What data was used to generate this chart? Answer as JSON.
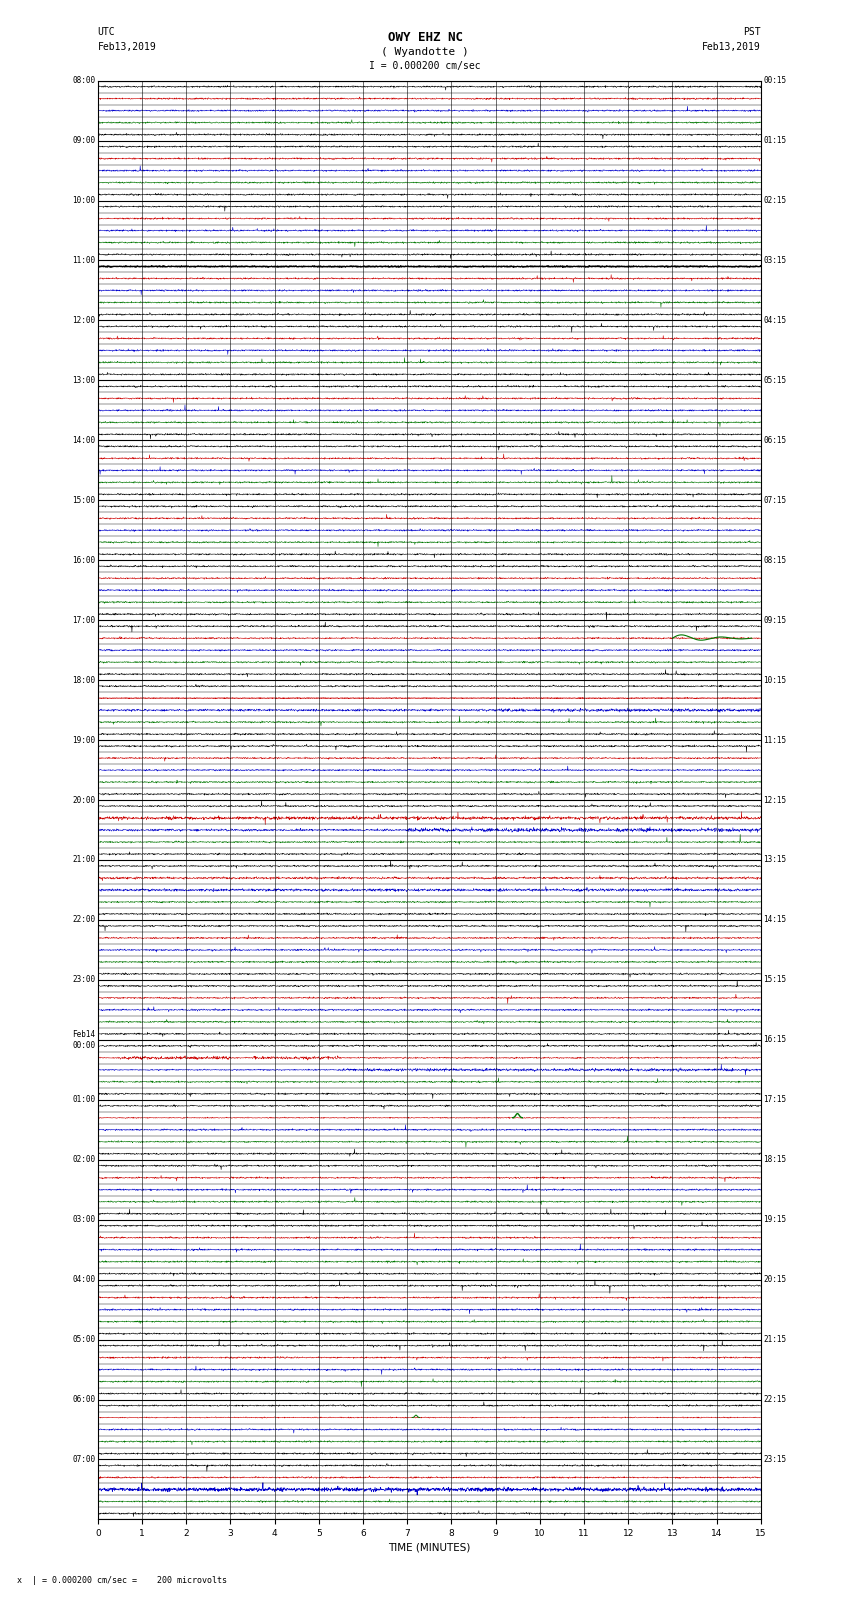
{
  "title_line1": "OWY EHZ NC",
  "title_line2": "( Wyandotte )",
  "scale_text": "I = 0.000200 cm/sec",
  "utc_label": "UTC",
  "utc_date": "Feb13,2019",
  "pst_label": "PST",
  "pst_date": "Feb13,2019",
  "footer_text": "x  | = 0.000200 cm/sec =    200 microvolts",
  "xlabel": "TIME (MINUTES)",
  "left_times": [
    "08:00",
    "09:00",
    "10:00",
    "11:00",
    "12:00",
    "13:00",
    "14:00",
    "15:00",
    "16:00",
    "17:00",
    "18:00",
    "19:00",
    "20:00",
    "21:00",
    "22:00",
    "23:00",
    "Feb14\n00:00",
    "01:00",
    "02:00",
    "03:00",
    "04:00",
    "05:00",
    "06:00",
    "07:00"
  ],
  "right_times": [
    "00:15",
    "01:15",
    "02:15",
    "03:15",
    "04:15",
    "05:15",
    "06:15",
    "07:15",
    "08:15",
    "09:15",
    "10:15",
    "11:15",
    "12:15",
    "13:15",
    "14:15",
    "15:15",
    "16:15",
    "17:15",
    "18:15",
    "19:15",
    "20:15",
    "21:15",
    "22:15",
    "23:15"
  ],
  "n_rows": 24,
  "sub_rows": 5,
  "minutes_per_row": 15,
  "x_ticks": [
    0,
    1,
    2,
    3,
    4,
    5,
    6,
    7,
    8,
    9,
    10,
    11,
    12,
    13,
    14,
    15
  ],
  "bg_color": "#ffffff",
  "grid_color": "#000000",
  "grid_color_light": "#555555",
  "trace_color_normal": "#000000",
  "trace_color_red": "#cc0000",
  "trace_color_blue": "#0000cc",
  "trace_color_green": "#007700",
  "fig_width": 8.5,
  "fig_height": 16.13
}
